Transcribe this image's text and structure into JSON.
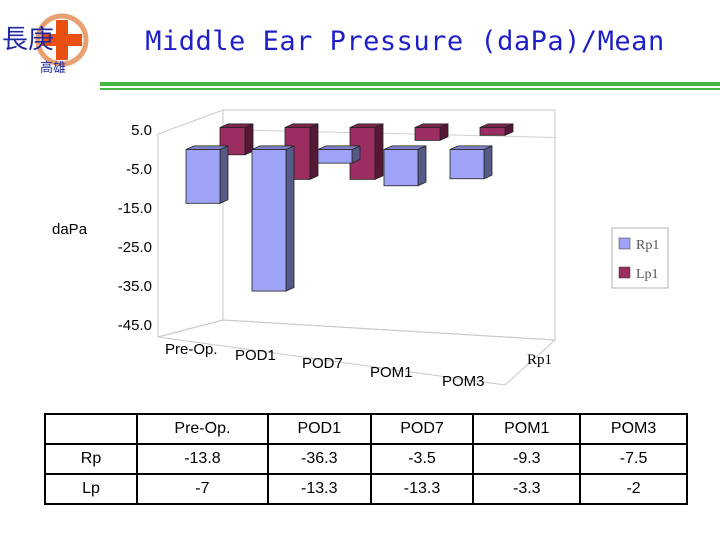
{
  "slide": {
    "title": "Middle Ear Pressure (daPa)/Mean",
    "logo_text_top": "長庚",
    "logo_text_bottom": "高雄"
  },
  "colors": {
    "rp": "#9ea3f5",
    "lp": "#9b2d60",
    "rule": "#46b846",
    "title": "#1f1fc8"
  },
  "chart_data": {
    "type": "bar",
    "style": "3d-clustered",
    "ylabel": "daPa",
    "ylim": [
      -45,
      5
    ],
    "yticks": [
      5.0,
      -5.0,
      -15.0,
      -25.0,
      -35.0,
      -45.0
    ],
    "ytick_labels": [
      "5.0",
      "-5.0",
      "-15.0",
      "-25.0",
      "-35.0",
      "-45.0"
    ],
    "categories": [
      "Pre-Op.",
      "POD1",
      "POD7",
      "POM1",
      "POM3"
    ],
    "depth_label": "Rp1",
    "legend_position": "right",
    "series": [
      {
        "name": "Rp1",
        "values": [
          -13.8,
          -36.3,
          -3.5,
          -9.3,
          -7.5
        ]
      },
      {
        "name": "Lp1",
        "values": [
          -7,
          -13.3,
          -13.3,
          -3.3,
          -2
        ]
      }
    ]
  },
  "table": {
    "headers": [
      "",
      "Pre-Op.",
      "POD1",
      "POD7",
      "POM1",
      "POM3"
    ],
    "rows": [
      {
        "label": "Rp",
        "cells": [
          "-13.8",
          "-36.3",
          "-3.5",
          "-9.3",
          "-7.5"
        ]
      },
      {
        "label": "Lp",
        "cells": [
          "-7",
          "-13.3",
          "-13.3",
          "-3.3",
          "-2"
        ]
      }
    ]
  }
}
